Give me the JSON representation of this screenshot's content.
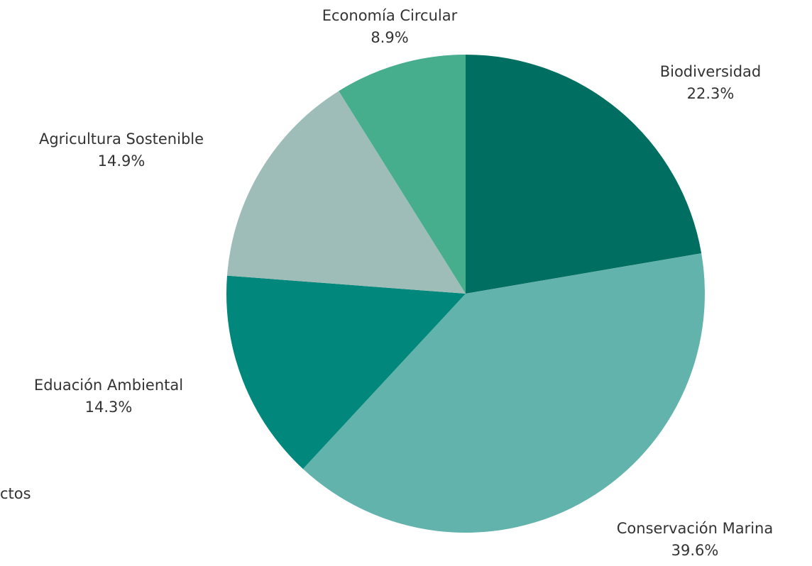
{
  "chart_data": {
    "type": "pie",
    "start_angle_deg": 0,
    "direction": "clockwise",
    "slices": [
      {
        "label": "Biodiversidad",
        "value": 22.3,
        "display": "22.3%",
        "color": "#006F62"
      },
      {
        "label": "Conservación Marina",
        "value": 39.6,
        "display": "39.6%",
        "color": "#63B3AD"
      },
      {
        "label": "Eduación Ambiental",
        "value": 14.3,
        "display": "14.3%",
        "color": "#01877B"
      },
      {
        "label": "Agricultura Sostenible",
        "value": 14.9,
        "display": "14.9%",
        "color": "#9EBDB8"
      },
      {
        "label": "Economía Circular",
        "value": 8.9,
        "display": "8.9%",
        "color": "#46AD8D"
      }
    ],
    "clipped_legend_text": "ctos"
  }
}
